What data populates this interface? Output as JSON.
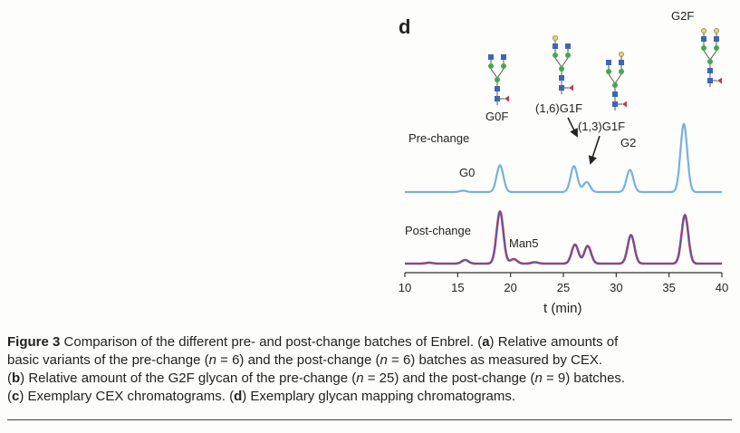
{
  "figure": {
    "panel_label": "d",
    "xlabel": "t (min)",
    "trace_labels": {
      "pre": "Pre-change",
      "post": "Post-change"
    },
    "peak_labels": {
      "g2f": "G2F",
      "g0f": "G0F",
      "g1f_16": "(1,6)G1F",
      "g1f_13": "(1,3)G1F",
      "g2": "G2",
      "g0": "G0",
      "man5": "Man5"
    }
  },
  "chart_data": {
    "type": "line",
    "title": "",
    "xlabel": "t (min)",
    "ylabel": "",
    "xlim": [
      10,
      40
    ],
    "x_ticks": [
      10,
      15,
      20,
      25,
      30,
      35,
      40
    ],
    "grid": false,
    "legend": "none",
    "colors": {
      "pre": "#77b1dd",
      "post_a": "#c4405e",
      "post_b": "#3a62b8"
    },
    "series": [
      {
        "name": "Pre-change",
        "peaks": [
          {
            "t": 15.5,
            "height": 0.03
          },
          {
            "t": 19.0,
            "height": 0.59
          },
          {
            "t": 26.0,
            "height": 0.57
          },
          {
            "t": 27.2,
            "height": 0.22
          },
          {
            "t": 31.3,
            "height": 0.49
          },
          {
            "t": 36.4,
            "height": 1.5
          }
        ]
      },
      {
        "name": "Post-change",
        "peaks": [
          {
            "t": 12.3,
            "height": 0.02
          },
          {
            "t": 15.7,
            "height": 0.08
          },
          {
            "t": 19.0,
            "height": 1.15
          },
          {
            "t": 20.3,
            "height": 0.1
          },
          {
            "t": 22.3,
            "height": 0.03
          },
          {
            "t": 26.1,
            "height": 0.42
          },
          {
            "t": 27.3,
            "height": 0.39
          },
          {
            "t": 31.4,
            "height": 0.63
          },
          {
            "t": 36.5,
            "height": 1.07
          }
        ]
      }
    ]
  },
  "caption": {
    "fig_label": "Figure 3",
    "line1_text": "Comparison of the different pre- and post-change batches of Enbrel. (",
    "a": "a",
    "line1_end": ") Relative amounts of",
    "line2_a": "basic variants of the pre-change (",
    "n": "n",
    "eq6": " = 6) and the post-change (",
    "eq6b": " = 6) batches as measured by CEX.",
    "b": "b",
    "line3_a": ") Relative amount of the G2F glycan of the pre-change (",
    "eq25": " = 25) and the post-change (",
    "eq9": " = 9) batches.",
    "c": "c",
    "line4_a": ") Exemplary CEX chromatograms. (",
    "d": "d",
    "line4_b": ") Exemplary glycan mapping chromatograms."
  }
}
